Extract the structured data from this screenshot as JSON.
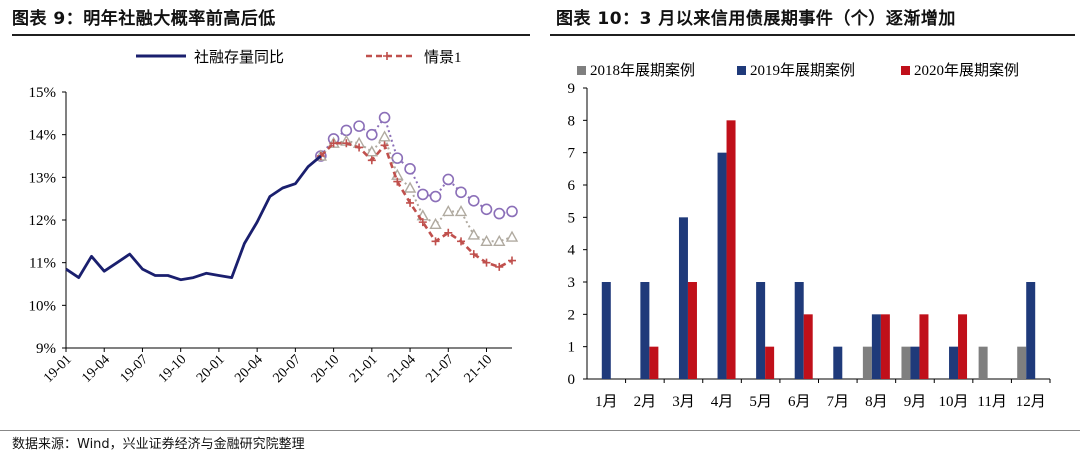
{
  "left_title": "图表 9：明年社融大概率前高后低",
  "right_title": "图表 10：3 月以来信用债展期事件（个）逐渐增加",
  "footer": "数据来源：Wind，兴业证券经济与金融研究院整理",
  "chart_data": [
    {
      "type": "line",
      "title": "",
      "ylim": [
        9,
        15
      ],
      "yticks": [
        "9%",
        "10%",
        "11%",
        "12%",
        "13%",
        "14%",
        "15%"
      ],
      "xticks": [
        "19-01",
        "19-04",
        "19-07",
        "19-10",
        "20-01",
        "20-04",
        "20-07",
        "20-10",
        "21-01",
        "21-04",
        "21-07",
        "21-10"
      ],
      "legend": [
        "社融存量同比",
        "情景1"
      ],
      "x": [
        "19-01",
        "19-02",
        "19-03",
        "19-04",
        "19-05",
        "19-06",
        "19-07",
        "19-08",
        "19-09",
        "19-10",
        "19-11",
        "19-12",
        "20-01",
        "20-02",
        "20-03",
        "20-04",
        "20-05",
        "20-06",
        "20-07",
        "20-08",
        "20-09",
        "20-10",
        "20-11",
        "20-12",
        "21-01",
        "21-02",
        "21-03",
        "21-04",
        "21-05",
        "21-06",
        "21-07",
        "21-08",
        "21-09",
        "21-10",
        "21-11",
        "21-12"
      ],
      "series": [
        {
          "name": "社融存量同比",
          "color": "#1a1f6e",
          "style": "solid",
          "values": [
            10.85,
            10.65,
            11.15,
            10.8,
            11.0,
            11.2,
            10.85,
            10.7,
            10.7,
            10.6,
            10.65,
            10.75,
            10.7,
            10.65,
            11.45,
            11.95,
            12.55,
            12.75,
            12.85,
            13.25,
            13.5,
            null,
            null,
            null,
            null,
            null,
            null,
            null,
            null,
            null,
            null,
            null,
            null,
            null,
            null,
            null
          ]
        },
        {
          "name": "情景1",
          "color": "#c0504d",
          "style": "dashed",
          "values": [
            null,
            null,
            null,
            null,
            null,
            null,
            null,
            null,
            null,
            null,
            null,
            null,
            null,
            null,
            null,
            null,
            null,
            null,
            null,
            null,
            13.5,
            13.8,
            13.8,
            13.7,
            13.4,
            13.75,
            12.9,
            12.4,
            11.95,
            11.5,
            11.7,
            11.5,
            11.2,
            11.0,
            10.9,
            11.05
          ]
        },
        {
          "name": "",
          "color": "#8b6fb8",
          "style": "circles",
          "values": [
            null,
            null,
            null,
            null,
            null,
            null,
            null,
            null,
            null,
            null,
            null,
            null,
            null,
            null,
            null,
            null,
            null,
            null,
            null,
            null,
            13.5,
            13.9,
            14.1,
            14.2,
            14.0,
            14.4,
            13.45,
            13.2,
            12.6,
            12.55,
            12.95,
            12.65,
            12.45,
            12.25,
            12.15,
            12.2
          ]
        },
        {
          "name": "",
          "color": "#b0aaa0",
          "style": "triangles",
          "values": [
            null,
            null,
            null,
            null,
            null,
            null,
            null,
            null,
            null,
            null,
            null,
            null,
            null,
            null,
            null,
            null,
            null,
            null,
            null,
            null,
            13.5,
            13.8,
            13.85,
            13.8,
            13.6,
            13.95,
            13.05,
            12.75,
            12.1,
            11.9,
            12.2,
            12.2,
            11.65,
            11.5,
            11.5,
            11.6
          ]
        }
      ]
    },
    {
      "type": "bar",
      "title": "",
      "ylim": [
        0,
        9
      ],
      "categories": [
        "1月",
        "2月",
        "3月",
        "4月",
        "5月",
        "6月",
        "7月",
        "8月",
        "9月",
        "10月",
        "11月",
        "12月"
      ],
      "series": [
        {
          "name": "2018年展期案例",
          "color": "#7f7f7f",
          "values": [
            0,
            0,
            0,
            0,
            0,
            0,
            0,
            1,
            1,
            0,
            1,
            1
          ]
        },
        {
          "name": "2019年展期案例",
          "color": "#1f3a7a",
          "values": [
            3,
            3,
            5,
            7,
            3,
            3,
            1,
            2,
            1,
            1,
            0,
            3
          ]
        },
        {
          "name": "2020年展期案例",
          "color": "#c0101a",
          "values": [
            0,
            1,
            3,
            8,
            1,
            2,
            0,
            2,
            2,
            2,
            0,
            0
          ]
        }
      ]
    }
  ]
}
